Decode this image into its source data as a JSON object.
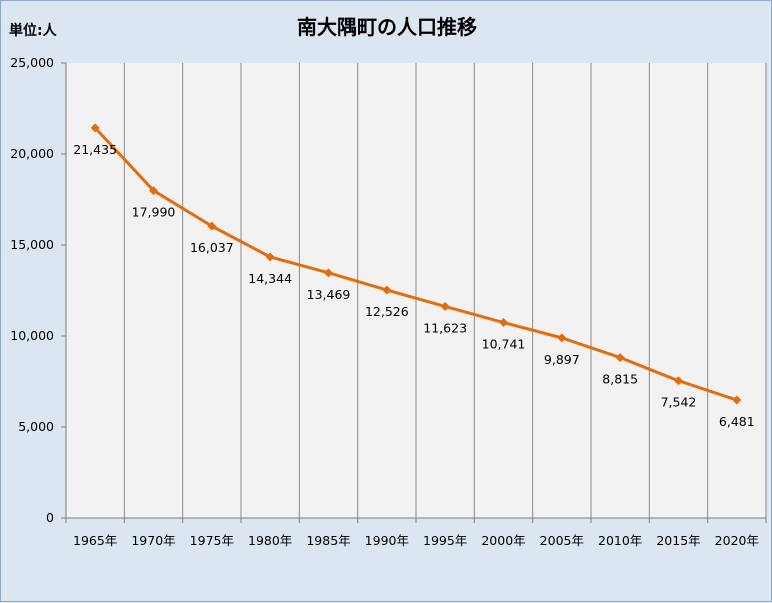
{
  "chart_data": {
    "type": "line",
    "title": "南大隅町の人口推移",
    "unit_label": "単位:人",
    "categories": [
      "1965年",
      "1970年",
      "1975年",
      "1980年",
      "1985年",
      "1990年",
      "1995年",
      "2000年",
      "2005年",
      "2010年",
      "2015年",
      "2020年"
    ],
    "series": [
      {
        "values": [
          21435,
          17990,
          16037,
          14344,
          13469,
          12526,
          11623,
          10741,
          9897,
          8815,
          7542,
          6481
        ],
        "data_labels": [
          "21,435",
          "17,990",
          "16,037",
          "14,344",
          "13,469",
          "12,526",
          "11,623",
          "10,741",
          "9,897",
          "8,815",
          "7,542",
          "6,481"
        ],
        "color": "#e46c0a"
      }
    ],
    "ylim": [
      0,
      25000
    ],
    "yticks": [
      0,
      5000,
      10000,
      15000,
      20000,
      25000
    ],
    "ytick_labels": [
      "0",
      "5,000",
      "10,000",
      "15,000",
      "20,000",
      "25,000"
    ],
    "grid": "vertical",
    "plot_background": "#f2f2f2"
  }
}
